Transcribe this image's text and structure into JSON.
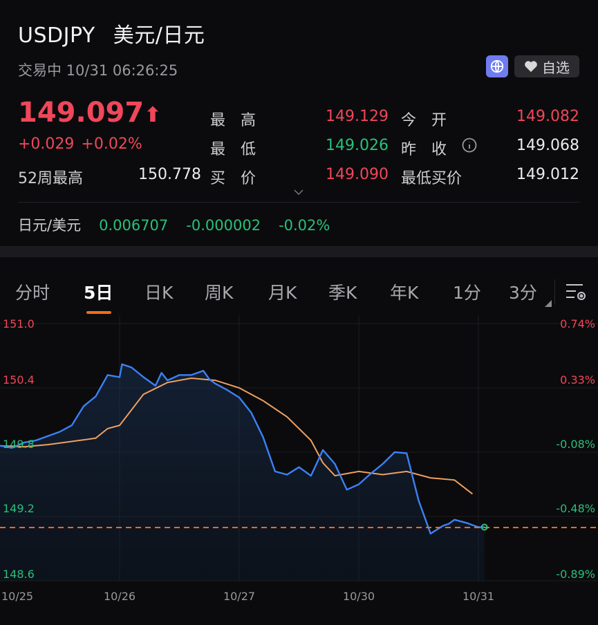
{
  "header": {
    "symbol": "USDJPY",
    "name": "美元/日元",
    "status": "交易中 10/31 06:26:25",
    "watch_label": "自选",
    "globe_icon": "globe-icon",
    "heart_icon": "heart-icon"
  },
  "quote": {
    "last": "149.097",
    "change": "+0.029",
    "change_pct": "+0.02%",
    "week52_label": "52周最高",
    "week52_value": "150.778",
    "fields": [
      {
        "label": "最　高",
        "value": "149.129",
        "color": "red"
      },
      {
        "label": "今　开",
        "value": "149.082",
        "color": "red"
      },
      {
        "label": "最　低",
        "value": "149.026",
        "color": "green"
      },
      {
        "label": "昨　收",
        "value": "149.068",
        "color": "white"
      },
      {
        "label": "买　价",
        "value": "149.090",
        "color": "red"
      },
      {
        "label": "最低买价",
        "value": "149.012",
        "color": "white"
      }
    ]
  },
  "inverse": {
    "label": "日元/美元",
    "value": "0.006707",
    "change": "-0.000002",
    "change_pct": "-0.02%"
  },
  "tabs": [
    "分时",
    "5日",
    "日K",
    "周K",
    "月K",
    "季K",
    "年K",
    "1分",
    "3分"
  ],
  "active_tab": "5日",
  "colors": {
    "up": "#f0475a",
    "down": "#29c07a",
    "price_line": "#3b82f6",
    "avg_line": "#f0a060",
    "last_line": "#ff6a1a"
  },
  "chart_data": {
    "type": "line",
    "x_labels": [
      "10/25",
      "10/26",
      "10/27",
      "10/30",
      "10/31"
    ],
    "ylim": [
      148.6,
      151.0
    ],
    "y_ticks": [
      "151.0",
      "150.4",
      "149.8",
      "149.2",
      "148.6"
    ],
    "pct_ticks": [
      "0.74%",
      "0.33%",
      "-0.08%",
      "-0.48%",
      "-0.89%"
    ],
    "pct_colors": [
      "up",
      "up",
      "down",
      "down",
      "down"
    ],
    "last_price": 149.097,
    "series": [
      {
        "values_x": [
          0,
          0.1,
          0.2,
          0.3,
          0.4,
          0.5,
          0.6,
          0.7,
          0.8,
          0.9,
          1.0,
          1.02,
          1.1,
          1.2,
          1.3,
          1.35,
          1.4,
          1.5,
          1.6,
          1.7,
          1.75,
          1.8,
          1.9,
          2.0,
          2.1,
          2.2,
          2.3,
          2.4,
          2.5,
          2.6,
          2.7,
          2.8,
          2.9,
          3.0,
          3.1,
          3.2,
          3.3,
          3.4,
          3.5,
          3.6,
          3.7,
          3.72,
          3.75,
          3.8,
          3.9,
          4.0,
          4.05
        ],
        "values_y": [
          149.86,
          149.84,
          149.89,
          149.91,
          149.95,
          149.99,
          150.05,
          150.23,
          150.32,
          150.52,
          150.5,
          150.62,
          150.59,
          150.5,
          150.42,
          150.54,
          150.47,
          150.52,
          150.52,
          150.56,
          150.48,
          150.44,
          150.38,
          150.31,
          150.17,
          149.94,
          149.62,
          149.59,
          149.66,
          149.58,
          149.82,
          149.69,
          149.45,
          149.5,
          149.6,
          149.69,
          149.8,
          149.79,
          149.35,
          149.04,
          149.11,
          149.12,
          149.13,
          149.17,
          149.14,
          149.1,
          149.1
        ]
      },
      {
        "values_x": [
          0,
          0.2,
          0.4,
          0.6,
          0.8,
          0.9,
          1.0,
          1.2,
          1.4,
          1.6,
          1.8,
          2.0,
          2.2,
          2.4,
          2.6,
          2.7,
          2.8,
          3.0,
          3.2,
          3.4,
          3.6,
          3.8,
          3.95
        ],
        "values_y": [
          149.86,
          149.85,
          149.87,
          149.9,
          149.93,
          150.02,
          150.05,
          150.34,
          150.45,
          150.49,
          150.47,
          150.4,
          150.28,
          150.13,
          149.91,
          149.7,
          149.58,
          149.62,
          149.59,
          149.62,
          149.56,
          149.54,
          149.41
        ]
      }
    ]
  }
}
